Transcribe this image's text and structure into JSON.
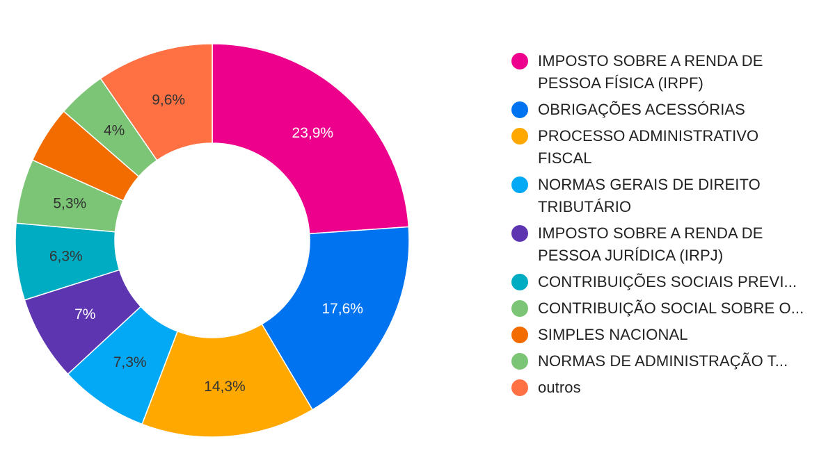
{
  "chart_data": {
    "type": "pie",
    "donut": true,
    "legend_position": "right",
    "slices": [
      {
        "label": "IMPOSTO SOBRE A RENDA DE PESSOA FÍSICA (IRPF)",
        "value": 23.9,
        "value_label": "23,9%",
        "color": "#ec008c",
        "label_color": "#ffffff"
      },
      {
        "label": "OBRIGAÇÕES ACESSÓRIAS",
        "value": 17.6,
        "value_label": "17,6%",
        "color": "#0073f0",
        "label_color": "#ffffff"
      },
      {
        "label": "PROCESSO ADMINISTRATIVO FISCAL",
        "value": 14.3,
        "value_label": "14,3%",
        "color": "#ffa800",
        "label_color": "#333333"
      },
      {
        "label": "NORMAS GERAIS DE DIREITO TRIBUTÁRIO",
        "value": 7.3,
        "value_label": "7,3%",
        "color": "#03a9f4",
        "label_color": "#333333"
      },
      {
        "label": "IMPOSTO SOBRE A RENDA DE PESSOA JURÍDICA (IRPJ)",
        "value": 7.0,
        "value_label": "7%",
        "color": "#5e35b1",
        "label_color": "#ffffff"
      },
      {
        "label": "CONTRIBUIÇÕES SOCIAIS PREVI...",
        "value": 6.3,
        "value_label": "6,3%",
        "color": "#00acc1",
        "label_color": "#333333"
      },
      {
        "label": "CONTRIBUIÇÃO SOCIAL SOBRE O...",
        "value": 5.3,
        "value_label": "5,3%",
        "color": "#7cc576",
        "label_color": "#333333"
      },
      {
        "label": "SIMPLES NACIONAL",
        "value": 4.7,
        "value_label": "",
        "color": "#f26c00",
        "label_color": "#333333"
      },
      {
        "label": "NORMAS DE ADMINISTRAÇÃO T...",
        "value": 4.0,
        "value_label": "4%",
        "color": "#7cc576",
        "label_color": "#333333"
      },
      {
        "label": "outros",
        "value": 9.6,
        "value_label": "9,6%",
        "color": "#ff7043",
        "label_color": "#333333"
      }
    ]
  },
  "legend": {
    "items": [
      {
        "label": "IMPOSTO SOBRE A RENDA DE PESSOA FÍSICA (IRPF)",
        "color": "#ec008c"
      },
      {
        "label": "OBRIGAÇÕES ACESSÓRIAS",
        "color": "#0073f0"
      },
      {
        "label": "PROCESSO ADMINISTRATIVO FISCAL",
        "color": "#ffa800"
      },
      {
        "label": "NORMAS GERAIS DE DIREITO TRIBUTÁRIO",
        "color": "#03a9f4"
      },
      {
        "label": "IMPOSTO SOBRE A RENDA DE PESSOA JURÍDICA (IRPJ)",
        "color": "#5e35b1"
      },
      {
        "label": "CONTRIBUIÇÕES SOCIAIS PREVI...",
        "color": "#00acc1"
      },
      {
        "label": "CONTRIBUIÇÃO SOCIAL SOBRE O...",
        "color": "#7cc576"
      },
      {
        "label": "SIMPLES NACIONAL",
        "color": "#f26c00"
      },
      {
        "label": "NORMAS DE ADMINISTRAÇÃO T...",
        "color": "#7cc576"
      },
      {
        "label": "outros",
        "color": "#ff7043"
      }
    ]
  }
}
